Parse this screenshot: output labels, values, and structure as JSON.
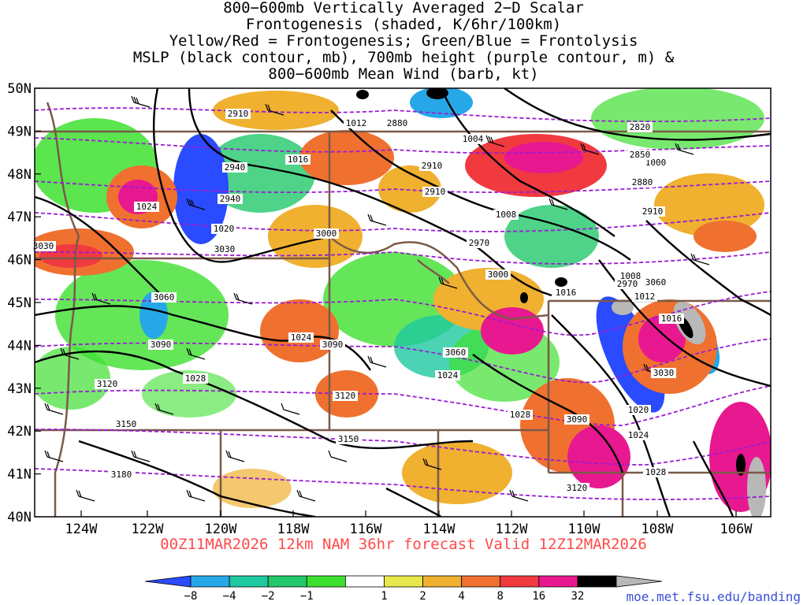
{
  "title_lines": [
    "800−600mb Vertically Averaged 2−D Scalar",
    "Frontogenesis (shaded, K/6hr/100km)",
    "Yellow/Red = Frontogenesis;  Green/Blue = Frontolysis",
    "MSLP (black contour, mb), 700mb height (purple contour, m) &",
    "800−600mb Mean Wind (barb, kt)"
  ],
  "lat_labels": [
    "50N",
    "49N",
    "48N",
    "47N",
    "46N",
    "45N",
    "44N",
    "43N",
    "42N",
    "41N",
    "40N"
  ],
  "lon_labels": [
    "124W",
    "122W",
    "120W",
    "118W",
    "116W",
    "114W",
    "112W",
    "110W",
    "108W",
    "106W"
  ],
  "forecast_label": "00Z11MAR2026 12km NAM 36hr forecast Valid 12Z12MAR2026",
  "credit": "moe.met.fsu.edu/banding",
  "colorbar": {
    "ticks": [
      "−8",
      "−4",
      "−2",
      "−1",
      "1",
      "2",
      "4",
      "8",
      "16",
      "32"
    ],
    "colors": [
      "#2a4bff",
      "#26a8e8",
      "#1ec8a0",
      "#22c86a",
      "#3ee030",
      "#ffffff",
      "#e8e84a",
      "#f0b030",
      "#f07030",
      "#f03a40",
      "#e81890",
      "#000000",
      "#b8b8b8"
    ]
  },
  "mslp_labels": [
    "1012",
    "1004",
    "1016",
    "1024",
    "1020",
    "1008",
    "1000",
    "1024",
    "1028",
    "1028",
    "1028",
    "1024",
    "1020",
    "1016",
    "1012",
    "1016",
    "1008",
    "1028",
    "1024"
  ],
  "height_labels": [
    "2910",
    "2880",
    "2820",
    "2850",
    "2940",
    "2910",
    "2910",
    "2880",
    "2910",
    "3000",
    "2970",
    "2940",
    "3030",
    "3060",
    "3090",
    "3090",
    "3120",
    "3150",
    "3120",
    "3150",
    "3060",
    "3030",
    "3090",
    "3060",
    "3180",
    "3120",
    "2970",
    "3000",
    "3030"
  ],
  "colors": {
    "mslp": "#000000",
    "height": "#9a1cd4",
    "border": "#7a5a48",
    "barb": "#000000"
  }
}
